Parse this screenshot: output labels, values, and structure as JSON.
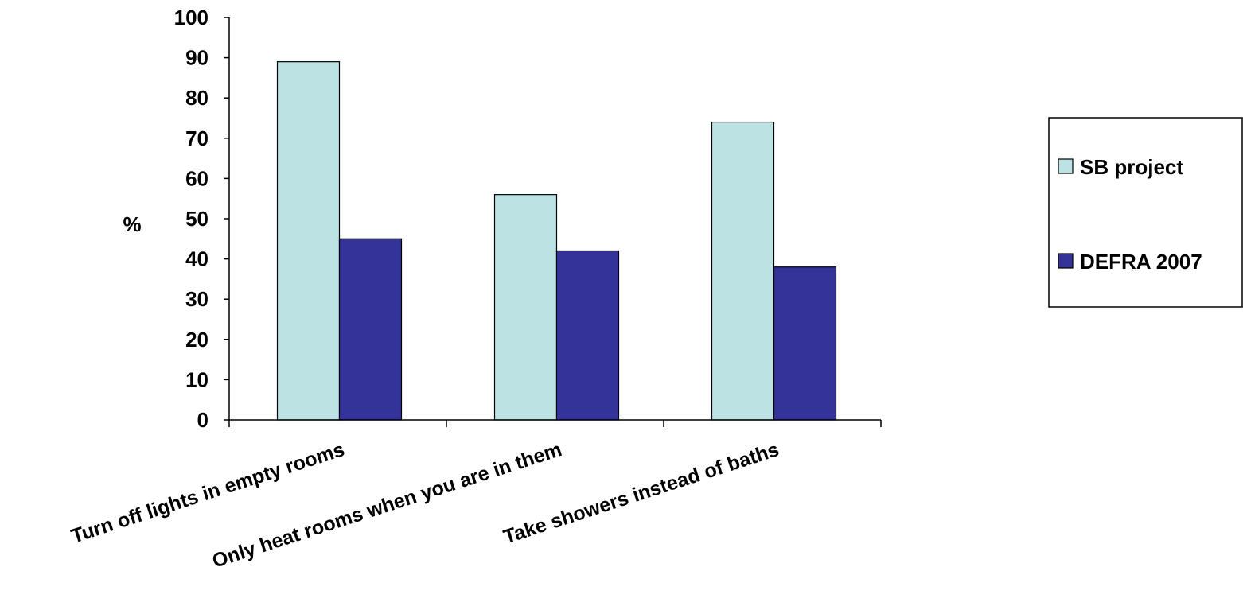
{
  "chart_data": {
    "type": "bar",
    "title": "",
    "xlabel": "",
    "ylabel": "%",
    "ylim": [
      0,
      100
    ],
    "yticks": [
      "0",
      "10",
      "20",
      "30",
      "40",
      "50",
      "60",
      "70",
      "80",
      "90",
      "100"
    ],
    "categories": [
      "Turn off lights in empty rooms",
      "Only heat rooms when you are in them",
      "Take showers instead of baths"
    ],
    "series": [
      {
        "name": "SB project",
        "color": "#bce2e4",
        "values": [
          89,
          56,
          74
        ]
      },
      {
        "name": "DEFRA  2007",
        "color": "#333399",
        "values": [
          45,
          42,
          38
        ]
      }
    ],
    "grid": false,
    "legend": "right"
  }
}
